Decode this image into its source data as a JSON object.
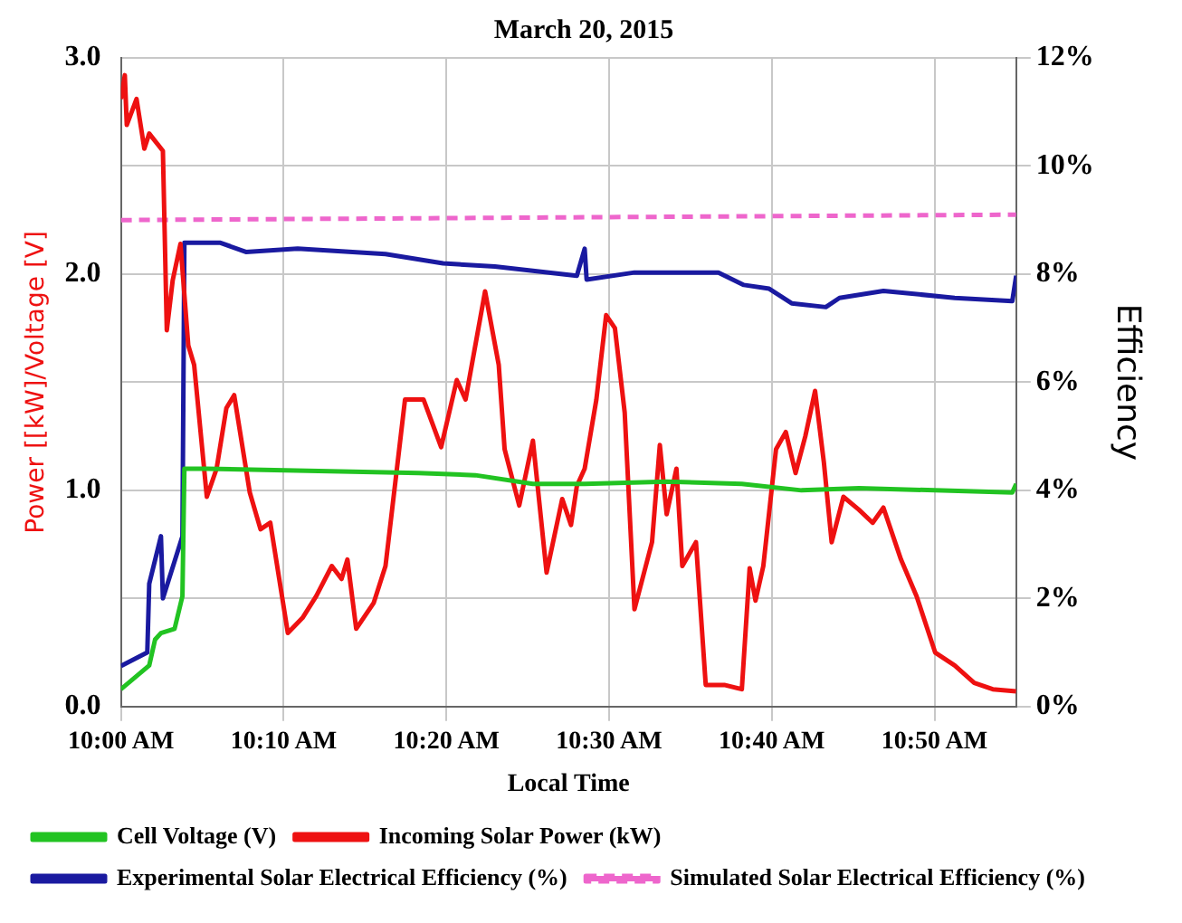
{
  "chart_data": {
    "type": "line",
    "title": "March 20, 2015",
    "xlabel": "Local Time",
    "ylabel": "Power [[kW]/Voltage [V]",
    "y2label": "Efficiency",
    "xlim": [
      10,
      10.917
    ],
    "xticks": [
      {
        "value": 10,
        "label": "10:00 AM"
      },
      {
        "value": 10.1667,
        "label": "10:10 AM"
      },
      {
        "value": 10.3333,
        "label": "10:20 AM"
      },
      {
        "value": 10.5,
        "label": "10:30 AM"
      },
      {
        "value": 10.6667,
        "label": "10:40 AM"
      },
      {
        "value": 10.8333,
        "label": "10:50 AM"
      }
    ],
    "ylim": [
      0,
      3
    ],
    "yticks": [
      {
        "value": 0,
        "label": "0.0"
      },
      {
        "value": 1,
        "label": "1.0"
      },
      {
        "value": 2,
        "label": "2.0"
      },
      {
        "value": 3,
        "label": "3.0"
      }
    ],
    "y2lim": [
      0,
      12
    ],
    "y2ticks": [
      {
        "value": 0,
        "label": "0%"
      },
      {
        "value": 2,
        "label": "2%"
      },
      {
        "value": 4,
        "label": "4%"
      },
      {
        "value": 6,
        "label": "6%"
      },
      {
        "value": 8,
        "label": "8%"
      },
      {
        "value": 10,
        "label": "10%"
      },
      {
        "value": 12,
        "label": "12%"
      }
    ],
    "grid": true,
    "legend": "bottom",
    "marker": "none",
    "series": [
      {
        "name": "Cell Voltage (V)",
        "color": "#22c322",
        "x": [
          10.0,
          10.029,
          10.035,
          10.041,
          10.055,
          10.063,
          10.065,
          10.088,
          10.305,
          10.363,
          10.422,
          10.475,
          10.559,
          10.636,
          10.697,
          10.756,
          10.913,
          10.917
        ],
        "values": [
          0.08,
          0.19,
          0.31,
          0.34,
          0.36,
          0.51,
          1.1,
          1.1,
          1.08,
          1.07,
          1.03,
          1.03,
          1.04,
          1.03,
          1.0,
          1.01,
          0.99,
          1.03
        ]
      },
      {
        "name": "Incoming Solar Power (kW)",
        "color": "#ee1111",
        "x": [
          10.0,
          10.004,
          10.006,
          10.016,
          10.024,
          10.029,
          10.043,
          10.047,
          10.053,
          10.061,
          10.069,
          10.075,
          10.088,
          10.098,
          10.108,
          10.116,
          10.132,
          10.143,
          10.153,
          10.171,
          10.186,
          10.2,
          10.216,
          10.226,
          10.232,
          10.241,
          10.259,
          10.271,
          10.291,
          10.31,
          10.328,
          10.344,
          10.353,
          10.373,
          10.387,
          10.393,
          10.408,
          10.422,
          10.436,
          10.452,
          10.461,
          10.467,
          10.475,
          10.487,
          10.497,
          10.506,
          10.516,
          10.526,
          10.544,
          10.552,
          10.559,
          10.569,
          10.575,
          10.589,
          10.599,
          10.618,
          10.636,
          10.644,
          10.65,
          10.658,
          10.671,
          10.681,
          10.691,
          10.701,
          10.711,
          10.72,
          10.728,
          10.74,
          10.756,
          10.77,
          10.781,
          10.799,
          10.815,
          10.834,
          10.854,
          10.874,
          10.893,
          10.917
        ],
        "values": [
          2.81,
          2.92,
          2.69,
          2.81,
          2.58,
          2.65,
          2.57,
          1.74,
          1.97,
          2.14,
          1.67,
          1.58,
          0.97,
          1.1,
          1.38,
          1.44,
          0.99,
          0.82,
          0.85,
          0.34,
          0.41,
          0.51,
          0.65,
          0.59,
          0.68,
          0.36,
          0.48,
          0.65,
          1.42,
          1.42,
          1.2,
          1.51,
          1.42,
          1.92,
          1.58,
          1.19,
          0.93,
          1.23,
          0.62,
          0.96,
          0.84,
          1.02,
          1.1,
          1.42,
          1.81,
          1.75,
          1.36,
          0.45,
          0.76,
          1.21,
          0.89,
          1.1,
          0.65,
          0.76,
          0.1,
          0.1,
          0.08,
          0.64,
          0.49,
          0.65,
          1.19,
          1.27,
          1.08,
          1.25,
          1.46,
          1.13,
          0.76,
          0.97,
          0.91,
          0.85,
          0.92,
          0.68,
          0.51,
          0.25,
          0.19,
          0.11,
          0.08,
          0.07
        ]
      },
      {
        "name": "Experimental Solar Electrical Efficiency (%)",
        "color": "#1a1aa0",
        "axis": "y2",
        "x": [
          10.0,
          10.027,
          10.029,
          10.041,
          10.043,
          10.063,
          10.065,
          10.102,
          10.128,
          10.181,
          10.271,
          10.33,
          10.383,
          10.467,
          10.475,
          10.477,
          10.526,
          10.612,
          10.638,
          10.664,
          10.687,
          10.722,
          10.736,
          10.781,
          10.854,
          10.913,
          10.917
        ],
        "values": [
          0.75,
          1.0,
          2.27,
          3.15,
          2.0,
          3.15,
          8.58,
          8.58,
          8.41,
          8.47,
          8.37,
          8.2,
          8.14,
          7.97,
          8.47,
          7.9,
          8.03,
          8.03,
          7.8,
          7.73,
          7.46,
          7.39,
          7.56,
          7.69,
          7.56,
          7.5,
          7.97
        ]
      },
      {
        "name": "Simulated Solar Electrical Efficiency (%)",
        "color": "#ee66cc",
        "axis": "y2",
        "line_style": "dashed",
        "x": [
          10.0,
          10.917
        ],
        "values": [
          9.0,
          9.1
        ]
      }
    ]
  }
}
